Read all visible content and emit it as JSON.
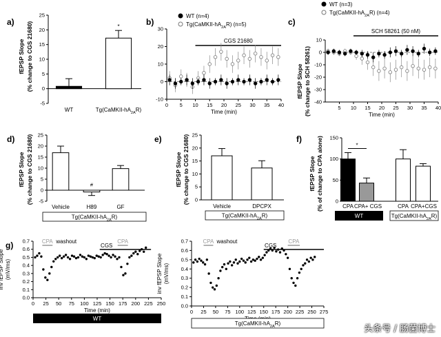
{
  "watermark": "头条号 / 肠菌博士",
  "chart_data": [
    {
      "id": "a",
      "panel_label": "a)",
      "type": "bar",
      "ylabel_1": "fEPSP Slope",
      "ylabel_2": "(% change to CGS 21680)",
      "categories": [
        "WT",
        "Tg(CaMKII-hA2AR)"
      ],
      "values": [
        0.8,
        17.2
      ],
      "errors": [
        2.6,
        2.6
      ],
      "fills": [
        "#000000",
        "#ffffff"
      ],
      "ylim": [
        -5,
        25
      ],
      "yticks": [
        -5,
        0,
        5,
        10,
        15,
        20,
        25
      ],
      "annotations": [
        "*"
      ]
    },
    {
      "id": "b",
      "panel_label": "b)",
      "type": "scatter",
      "xlabel": "Time (min)",
      "xlim": [
        0,
        40
      ],
      "ylim": [
        -10,
        30
      ],
      "xticks": [
        0,
        5,
        10,
        15,
        20,
        25,
        30,
        35,
        40
      ],
      "yticks": [
        -10,
        0,
        10,
        20,
        30
      ],
      "treatment_label": "CGS 21680",
      "treatment_range": [
        10,
        40
      ],
      "series": [
        {
          "name": "WT (n=4)",
          "filled": true,
          "x": [
            1,
            3,
            5,
            7,
            9,
            11,
            13,
            15,
            17,
            19,
            21,
            23,
            25,
            27,
            29,
            31,
            33,
            35,
            37,
            39
          ],
          "y": [
            1,
            -1,
            0,
            1,
            -1,
            0,
            1,
            -1,
            0,
            1,
            -1,
            0,
            1,
            0,
            1,
            -1,
            0,
            1,
            0,
            1
          ],
          "err": [
            3,
            3,
            2,
            3,
            3,
            2,
            3,
            3,
            2,
            3,
            3,
            2,
            3,
            2,
            3,
            3,
            2,
            3,
            2,
            3
          ]
        },
        {
          "name": "Tg(CaMKII-hA2AR) (n=5)",
          "filled": false,
          "x": [
            1,
            3,
            5,
            7,
            9,
            11,
            13,
            15,
            17,
            19,
            21,
            23,
            25,
            27,
            29,
            31,
            33,
            35,
            37,
            39
          ],
          "y": [
            2,
            -2,
            3,
            1,
            -3,
            2,
            5,
            10,
            14,
            17,
            13,
            10,
            12,
            15,
            13,
            16,
            14,
            12,
            15,
            14
          ],
          "err": [
            4,
            4,
            4,
            4,
            4,
            4,
            4,
            5,
            5,
            5,
            5,
            5,
            5,
            5,
            5,
            5,
            5,
            5,
            5,
            5
          ]
        }
      ]
    },
    {
      "id": "c",
      "panel_label": "c)",
      "type": "scatter",
      "ylabel_1": "fEPSP Slope",
      "ylabel_2": "(% change to SCH 58261)",
      "xlabel": "Time (min)",
      "xlim": [
        0,
        40
      ],
      "ylim": [
        -40,
        10
      ],
      "xticks": [
        5,
        10,
        15,
        20,
        25,
        30,
        35,
        40
      ],
      "yticks": [
        -40,
        -30,
        -20,
        -10,
        0,
        10
      ],
      "treatment_label": "SCH 58261 (50 nM)",
      "treatment_range": [
        10,
        40
      ],
      "series": [
        {
          "name": "WT (n=3)",
          "filled": true,
          "x": [
            1,
            3,
            5,
            7,
            9,
            11,
            13,
            15,
            17,
            19,
            21,
            23,
            25,
            27,
            29,
            31,
            33,
            35,
            37,
            39
          ],
          "y": [
            0,
            1,
            0,
            -1,
            1,
            0,
            -1,
            -2,
            -4,
            -1,
            -2,
            0,
            1,
            -1,
            2,
            1,
            -1,
            3,
            0,
            1
          ],
          "err": [
            2,
            2,
            2,
            2,
            2,
            2,
            3,
            3,
            4,
            3,
            3,
            4,
            4,
            3,
            4,
            4,
            3,
            4,
            3,
            3
          ]
        },
        {
          "name": "Tg(CaMKII-hA2AR) (n=4)",
          "filled": false,
          "x": [
            1,
            3,
            5,
            7,
            9,
            11,
            13,
            15,
            17,
            19,
            21,
            23,
            25,
            27,
            29,
            31,
            33,
            35,
            37,
            39
          ],
          "y": [
            1,
            0,
            -1,
            1,
            0,
            -3,
            -5,
            -8,
            -12,
            -15,
            -13,
            -16,
            -14,
            -12,
            -15,
            -11,
            -13,
            -14,
            -12,
            -13
          ],
          "err": [
            2,
            2,
            2,
            2,
            2,
            3,
            5,
            6,
            7,
            8,
            8,
            8,
            8,
            8,
            8,
            8,
            8,
            8,
            8,
            8
          ]
        }
      ]
    },
    {
      "id": "d",
      "panel_label": "d)",
      "type": "bar",
      "ylabel_1": "fEPSP Slope",
      "ylabel_2": "(% change to CGS 21680)",
      "categories": [
        "Vehicle",
        "H89",
        "GF"
      ],
      "values": [
        17.0,
        -0.8,
        9.8
      ],
      "errors": [
        3.0,
        1.6,
        1.4
      ],
      "fills": [
        "#ffffff",
        "#ffffff",
        "#ffffff"
      ],
      "ylim": [
        -5,
        25
      ],
      "yticks": [
        -5,
        0,
        5,
        10,
        15,
        20,
        25
      ],
      "annotations": [
        "#"
      ],
      "group_label": "Tg(CaMKII-hA2AR)"
    },
    {
      "id": "e",
      "panel_label": "e)",
      "type": "bar",
      "ylabel_1": "fEPSP Slope",
      "ylabel_2": "(% change to CGS 21680)",
      "categories": [
        "Vehicle",
        "DPCPX"
      ],
      "values": [
        17.0,
        12.3
      ],
      "errors": [
        2.8,
        2.8
      ],
      "fills": [
        "#ffffff",
        "#ffffff"
      ],
      "ylim": [
        0,
        25
      ],
      "yticks": [
        0,
        5,
        10,
        15,
        20,
        25
      ],
      "group_label": "Tg(CaMKII-hA2AR)"
    },
    {
      "id": "f",
      "panel_label": "f)",
      "type": "bar",
      "ylabel_1": "fEPSP Slope",
      "ylabel_2": "(% of change to CPA alone)",
      "categories": [
        "CPA",
        "CPA+ CGS",
        "CPA",
        "CPA+CGS"
      ],
      "values": [
        100,
        43,
        100,
        83
      ],
      "errors": [
        15,
        12,
        22,
        6
      ],
      "fills": [
        "#000000",
        "#999999",
        "#ffffff",
        "#ffffff"
      ],
      "ylim": [
        0,
        150
      ],
      "yticks": [
        0,
        50,
        100,
        150
      ],
      "annotations": [
        "*"
      ],
      "groups": [
        {
          "label": "WT",
          "style": "black"
        },
        {
          "label": "Tg(CaMKII-hA2AR)",
          "style": "white"
        }
      ]
    },
    {
      "id": "g1",
      "panel_label": "g)",
      "type": "scatter",
      "ylabel_1": "inv fEPSP Slope",
      "ylabel_2": "(mV/ms)",
      "xlabel": "Time (min)",
      "xlim": [
        0,
        250
      ],
      "ylim": [
        0.0,
        0.7
      ],
      "xticks": [
        0,
        25,
        50,
        75,
        100,
        125,
        150,
        175,
        200,
        225,
        250
      ],
      "yticks": [
        0.0,
        0.1,
        0.2,
        0.3,
        0.4,
        0.5,
        0.6,
        0.7
      ],
      "label_cpa1": "CPA",
      "label_washout": "washout",
      "label_cgs": "CGS",
      "label_cpa2": "CPA",
      "range_cpa1": [
        18,
        38
      ],
      "range_washout": [
        38,
        130
      ],
      "range_cgs": [
        130,
        230
      ],
      "range_cpa2": [
        165,
        185
      ],
      "group_label": "WT",
      "x": [
        4,
        8,
        12,
        16,
        20,
        24,
        28,
        32,
        36,
        40,
        44,
        48,
        52,
        56,
        60,
        64,
        68,
        72,
        76,
        80,
        84,
        88,
        92,
        96,
        100,
        104,
        108,
        112,
        116,
        120,
        124,
        128,
        132,
        136,
        140,
        144,
        148,
        152,
        156,
        160,
        164,
        168,
        172,
        176,
        180,
        184,
        188,
        192,
        196,
        200,
        204,
        208,
        212,
        216,
        220
      ],
      "y": [
        0.5,
        0.52,
        0.55,
        0.51,
        0.35,
        0.25,
        0.22,
        0.3,
        0.38,
        0.45,
        0.48,
        0.5,
        0.52,
        0.49,
        0.51,
        0.53,
        0.5,
        0.48,
        0.52,
        0.51,
        0.49,
        0.5,
        0.53,
        0.51,
        0.5,
        0.48,
        0.52,
        0.51,
        0.5,
        0.49,
        0.52,
        0.51,
        0.5,
        0.53,
        0.55,
        0.54,
        0.52,
        0.5,
        0.53,
        0.51,
        0.48,
        0.5,
        0.38,
        0.28,
        0.3,
        0.42,
        0.5,
        0.52,
        0.55,
        0.57,
        0.54,
        0.58,
        0.6,
        0.57,
        0.62
      ]
    },
    {
      "id": "g2",
      "type": "scatter",
      "ylabel_1": "inv fEPSP Slope",
      "ylabel_2": "(mV/ms)",
      "xlabel": "Time (min)",
      "xlim": [
        0,
        275
      ],
      "ylim": [
        0.0,
        0.7
      ],
      "xticks": [
        0,
        25,
        50,
        75,
        100,
        125,
        150,
        175,
        200,
        225,
        250,
        275
      ],
      "yticks": [
        0.0,
        0.1,
        0.2,
        0.3,
        0.4,
        0.5,
        0.6,
        0.7
      ],
      "label_cpa1": "CPA",
      "label_washout": "washout",
      "label_cgs": "CGS",
      "label_cpa2": "CPA",
      "range_cpa1": [
        25,
        45
      ],
      "range_washout": [
        45,
        150
      ],
      "range_cgs": [
        150,
        275
      ],
      "range_cpa2": [
        200,
        225
      ],
      "group_label": "Tg(CaMKII-hA2AR)",
      "x": [
        4,
        8,
        12,
        16,
        20,
        24,
        28,
        32,
        36,
        40,
        44,
        48,
        52,
        56,
        60,
        64,
        68,
        72,
        76,
        80,
        84,
        88,
        92,
        96,
        100,
        104,
        108,
        112,
        116,
        120,
        124,
        128,
        132,
        136,
        140,
        144,
        148,
        152,
        156,
        160,
        164,
        168,
        172,
        176,
        180,
        184,
        188,
        192,
        196,
        200,
        204,
        208,
        212,
        216,
        220,
        224,
        228,
        232,
        236,
        240,
        244,
        248,
        252,
        256
      ],
      "y": [
        0.47,
        0.5,
        0.48,
        0.51,
        0.49,
        0.47,
        0.45,
        0.5,
        0.35,
        0.25,
        0.2,
        0.18,
        0.22,
        0.3,
        0.38,
        0.42,
        0.45,
        0.4,
        0.46,
        0.48,
        0.44,
        0.47,
        0.5,
        0.46,
        0.48,
        0.51,
        0.49,
        0.47,
        0.5,
        0.52,
        0.48,
        0.5,
        0.49,
        0.51,
        0.53,
        0.5,
        0.52,
        0.55,
        0.58,
        0.6,
        0.62,
        0.6,
        0.63,
        0.59,
        0.61,
        0.58,
        0.62,
        0.6,
        0.56,
        0.52,
        0.4,
        0.3,
        0.25,
        0.22,
        0.3,
        0.36,
        0.4,
        0.44,
        0.46,
        0.5,
        0.48,
        0.52,
        0.5,
        0.53
      ]
    }
  ]
}
